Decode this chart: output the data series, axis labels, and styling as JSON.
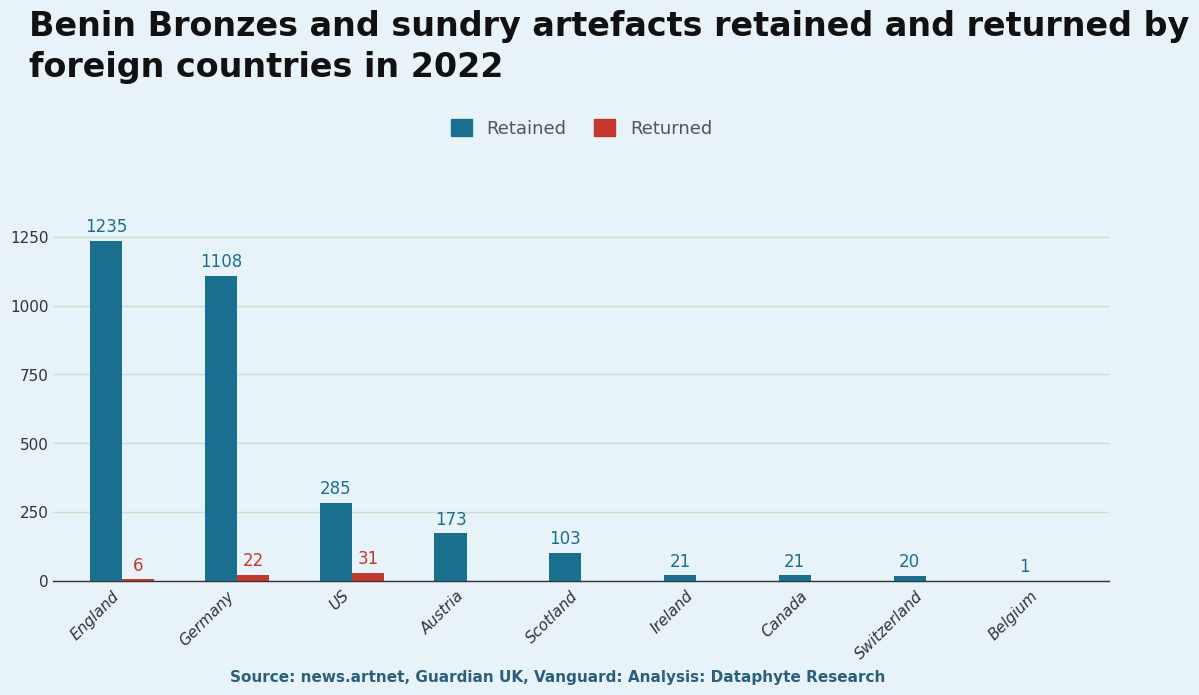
{
  "title": "Benin Bronzes and sundry artefacts retained and returned by\nforeign countries in 2022",
  "categories": [
    "England",
    "Germany",
    "US",
    "Austria",
    "Scotland",
    "Ireland",
    "Canada",
    "Switzerland",
    "Belgium"
  ],
  "retained": [
    1235,
    1108,
    285,
    173,
    103,
    21,
    21,
    20,
    1
  ],
  "returned": [
    6,
    22,
    31,
    0,
    0,
    0,
    0,
    0,
    0
  ],
  "retained_color": "#1a6e8e",
  "returned_color": "#c0392b",
  "background_color": "#e8f2f9",
  "gridline_color": "#c8dfc8",
  "title_fontsize": 24,
  "label_fontsize": 12,
  "tick_fontsize": 11,
  "source_text": "Source: news.artnet, Guardian UK, Vanguard: Analysis: Dataphyte Research",
  "source_color": "#2c5f7a",
  "ylim": [
    0,
    1400
  ],
  "yticks": [
    0,
    250,
    500,
    750,
    1000,
    1250
  ],
  "bar_width": 0.28,
  "legend_labels": [
    "Retained",
    "Returned"
  ]
}
